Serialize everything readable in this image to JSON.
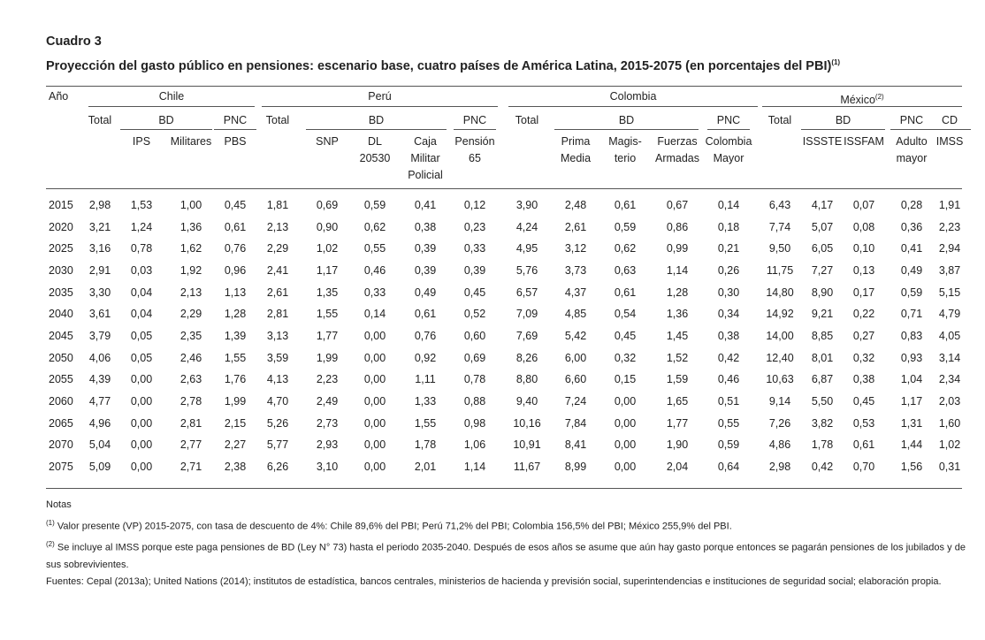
{
  "header": {
    "label": "Cuadro 3",
    "title": "Proyección del gasto público en pensiones: escenario base, cuatro países de América Latina, 2015-2075 (en porcentajes del PBI)",
    "title_note": "(1)"
  },
  "table": {
    "year_header": "Año",
    "countries": [
      {
        "name": "Chile",
        "total": "Total",
        "subgroups": [
          {
            "name": "BD",
            "columns": [
              [
                "IPS"
              ],
              [
                "Militares"
              ]
            ]
          },
          {
            "name": "PNC",
            "columns": [
              [
                "PBS"
              ]
            ]
          }
        ]
      },
      {
        "name": "Perú",
        "total": "Total",
        "subgroups": [
          {
            "name": "BD",
            "columns": [
              [
                "SNP"
              ],
              [
                "DL",
                "20530"
              ],
              [
                "Caja",
                "Militar",
                "Policial"
              ]
            ]
          },
          {
            "name": "PNC",
            "columns": [
              [
                "Pensión",
                "65"
              ]
            ]
          }
        ]
      },
      {
        "name": "Colombia",
        "total": "Total",
        "subgroups": [
          {
            "name": "BD",
            "columns": [
              [
                "Prima",
                "Media"
              ],
              [
                "Magis-",
                "terio"
              ],
              [
                "Fuerzas",
                "Armadas"
              ]
            ]
          },
          {
            "name": "PNC",
            "columns": [
              [
                "Colombia",
                "Mayor"
              ]
            ]
          }
        ]
      },
      {
        "name": "México",
        "note": "(2)",
        "total": "Total",
        "subgroups": [
          {
            "name": "BD",
            "columns": [
              [
                "ISSSTE"
              ],
              [
                "ISSFAM"
              ]
            ]
          },
          {
            "name": "PNC",
            "columns": [
              [
                "Adulto",
                "mayor"
              ]
            ]
          },
          {
            "name": "CD",
            "columns": [
              [
                "IMSS"
              ]
            ]
          }
        ]
      }
    ],
    "rows": [
      [
        "2015",
        "2,98",
        "1,53",
        "1,00",
        "0,45",
        "1,81",
        "0,69",
        "0,59",
        "0,41",
        "0,12",
        "3,90",
        "2,48",
        "0,61",
        "0,67",
        "0,14",
        "6,43",
        "4,17",
        "0,07",
        "0,28",
        "1,91"
      ],
      [
        "2020",
        "3,21",
        "1,24",
        "1,36",
        "0,61",
        "2,13",
        "0,90",
        "0,62",
        "0,38",
        "0,23",
        "4,24",
        "2,61",
        "0,59",
        "0,86",
        "0,18",
        "7,74",
        "5,07",
        "0,08",
        "0,36",
        "2,23"
      ],
      [
        "2025",
        "3,16",
        "0,78",
        "1,62",
        "0,76",
        "2,29",
        "1,02",
        "0,55",
        "0,39",
        "0,33",
        "4,95",
        "3,12",
        "0,62",
        "0,99",
        "0,21",
        "9,50",
        "6,05",
        "0,10",
        "0,41",
        "2,94"
      ],
      [
        "2030",
        "2,91",
        "0,03",
        "1,92",
        "0,96",
        "2,41",
        "1,17",
        "0,46",
        "0,39",
        "0,39",
        "5,76",
        "3,73",
        "0,63",
        "1,14",
        "0,26",
        "11,75",
        "7,27",
        "0,13",
        "0,49",
        "3,87"
      ],
      [
        "2035",
        "3,30",
        "0,04",
        "2,13",
        "1,13",
        "2,61",
        "1,35",
        "0,33",
        "0,49",
        "0,45",
        "6,57",
        "4,37",
        "0,61",
        "1,28",
        "0,30",
        "14,80",
        "8,90",
        "0,17",
        "0,59",
        "5,15"
      ],
      [
        "2040",
        "3,61",
        "0,04",
        "2,29",
        "1,28",
        "2,81",
        "1,55",
        "0,14",
        "0,61",
        "0,52",
        "7,09",
        "4,85",
        "0,54",
        "1,36",
        "0,34",
        "14,92",
        "9,21",
        "0,22",
        "0,71",
        "4,79"
      ],
      [
        "2045",
        "3,79",
        "0,05",
        "2,35",
        "1,39",
        "3,13",
        "1,77",
        "0,00",
        "0,76",
        "0,60",
        "7,69",
        "5,42",
        "0,45",
        "1,45",
        "0,38",
        "14,00",
        "8,85",
        "0,27",
        "0,83",
        "4,05"
      ],
      [
        "2050",
        "4,06",
        "0,05",
        "2,46",
        "1,55",
        "3,59",
        "1,99",
        "0,00",
        "0,92",
        "0,69",
        "8,26",
        "6,00",
        "0,32",
        "1,52",
        "0,42",
        "12,40",
        "8,01",
        "0,32",
        "0,93",
        "3,14"
      ],
      [
        "2055",
        "4,39",
        "0,00",
        "2,63",
        "1,76",
        "4,13",
        "2,23",
        "0,00",
        "1,11",
        "0,78",
        "8,80",
        "6,60",
        "0,15",
        "1,59",
        "0,46",
        "10,63",
        "6,87",
        "0,38",
        "1,04",
        "2,34"
      ],
      [
        "2060",
        "4,77",
        "0,00",
        "2,78",
        "1,99",
        "4,70",
        "2,49",
        "0,00",
        "1,33",
        "0,88",
        "9,40",
        "7,24",
        "0,00",
        "1,65",
        "0,51",
        "9,14",
        "5,50",
        "0,45",
        "1,17",
        "2,03"
      ],
      [
        "2065",
        "4,96",
        "0,00",
        "2,81",
        "2,15",
        "5,26",
        "2,73",
        "0,00",
        "1,55",
        "0,98",
        "10,16",
        "7,84",
        "0,00",
        "1,77",
        "0,55",
        "7,26",
        "3,82",
        "0,53",
        "1,31",
        "1,60"
      ],
      [
        "2070",
        "5,04",
        "0,00",
        "2,77",
        "2,27",
        "5,77",
        "2,93",
        "0,00",
        "1,78",
        "1,06",
        "10,91",
        "8,41",
        "0,00",
        "1,90",
        "0,59",
        "4,86",
        "1,78",
        "0,61",
        "1,44",
        "1,02"
      ],
      [
        "2075",
        "5,09",
        "0,00",
        "2,71",
        "2,38",
        "6,26",
        "3,10",
        "0,00",
        "2,01",
        "1,14",
        "11,67",
        "8,99",
        "0,00",
        "2,04",
        "0,64",
        "2,98",
        "0,42",
        "0,70",
        "1,56",
        "0,31"
      ]
    ]
  },
  "notes": {
    "heading": "Notas",
    "items": [
      {
        "marker": "(1)",
        "text": "Valor presente (VP) 2015-2075, con tasa de descuento de 4%: Chile 89,6% del PBI; Perú 71,2% del PBI; Colombia 156,5% del PBI; México 255,9% del PBI."
      },
      {
        "marker": "(2)",
        "text": "Se incluye al IMSS porque este paga pensiones de BD (Ley N° 73) hasta el periodo 2035-2040. Después de esos años se asume que aún hay gasto porque entonces se pagarán pensiones de los jubilados y de sus sobrevivientes."
      }
    ],
    "sources": "Fuentes: Cepal (2013a); United Nations (2014); institutos de estadística, bancos centrales, ministerios de hacienda y previsión social, superintendencias e instituciones de seguridad social; elaboración propia."
  }
}
